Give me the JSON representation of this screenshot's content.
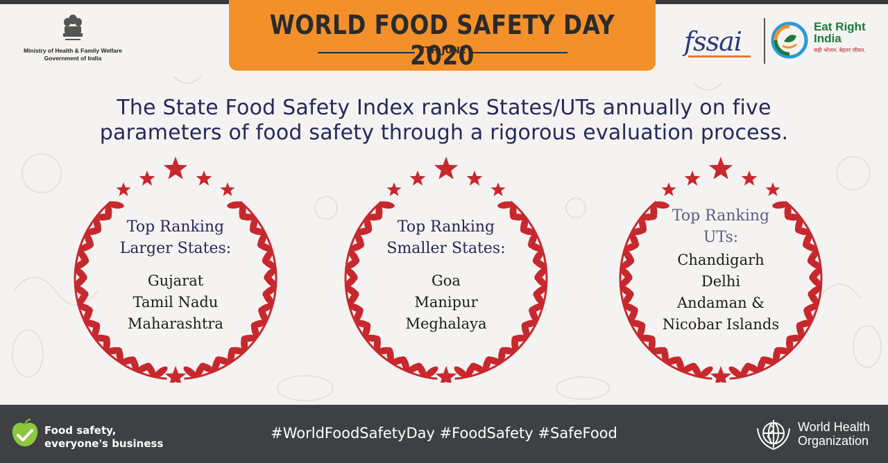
{
  "header": {
    "title": "WORLD FOOD SAFETY DAY 2020",
    "date": "7TH JUNE",
    "banner_color": "#f4902a"
  },
  "ministry": {
    "emblem_icon": "ashoka-emblem-icon",
    "line1": "Ministry of Health & Family Welfare",
    "line2": "Government of India"
  },
  "logos": {
    "fssai": "fssai",
    "eat_right_line1": "Eat Right",
    "eat_right_line2": "India",
    "eat_right_tagline": "सही भोजन. बेहतर जीवन."
  },
  "headline": {
    "line1": "The State Food Safety Index ranks States/UTs annually on five",
    "line2": "parameters of food safety through a rigorous evaluation process."
  },
  "rankings": [
    {
      "heading_line1": "Top Ranking",
      "heading_line2": "Larger States:",
      "items": [
        "Gujarat",
        "Tamil Nadu",
        "Maharashtra"
      ]
    },
    {
      "heading_line1": "Top Ranking",
      "heading_line2": "Smaller States:",
      "items": [
        "Goa",
        "Manipur",
        "Meghalaya"
      ]
    },
    {
      "heading_line1": "Top Ranking",
      "heading_line2": "UTs:",
      "items": [
        "Chandigarh",
        "Delhi",
        "Andaman &",
        "Nicobar Islands"
      ]
    }
  ],
  "footer": {
    "tagline_line1": "Food safety,",
    "tagline_line2": "everyone's  business",
    "hashtags": "#WorldFoodSafetyDay #FoodSafety #SafeFood",
    "who_line1": "World Health",
    "who_line2": "Organization",
    "background_color": "#3f4044"
  },
  "colors": {
    "wreath": "#c7282e",
    "text_navy": "#26285a"
  }
}
